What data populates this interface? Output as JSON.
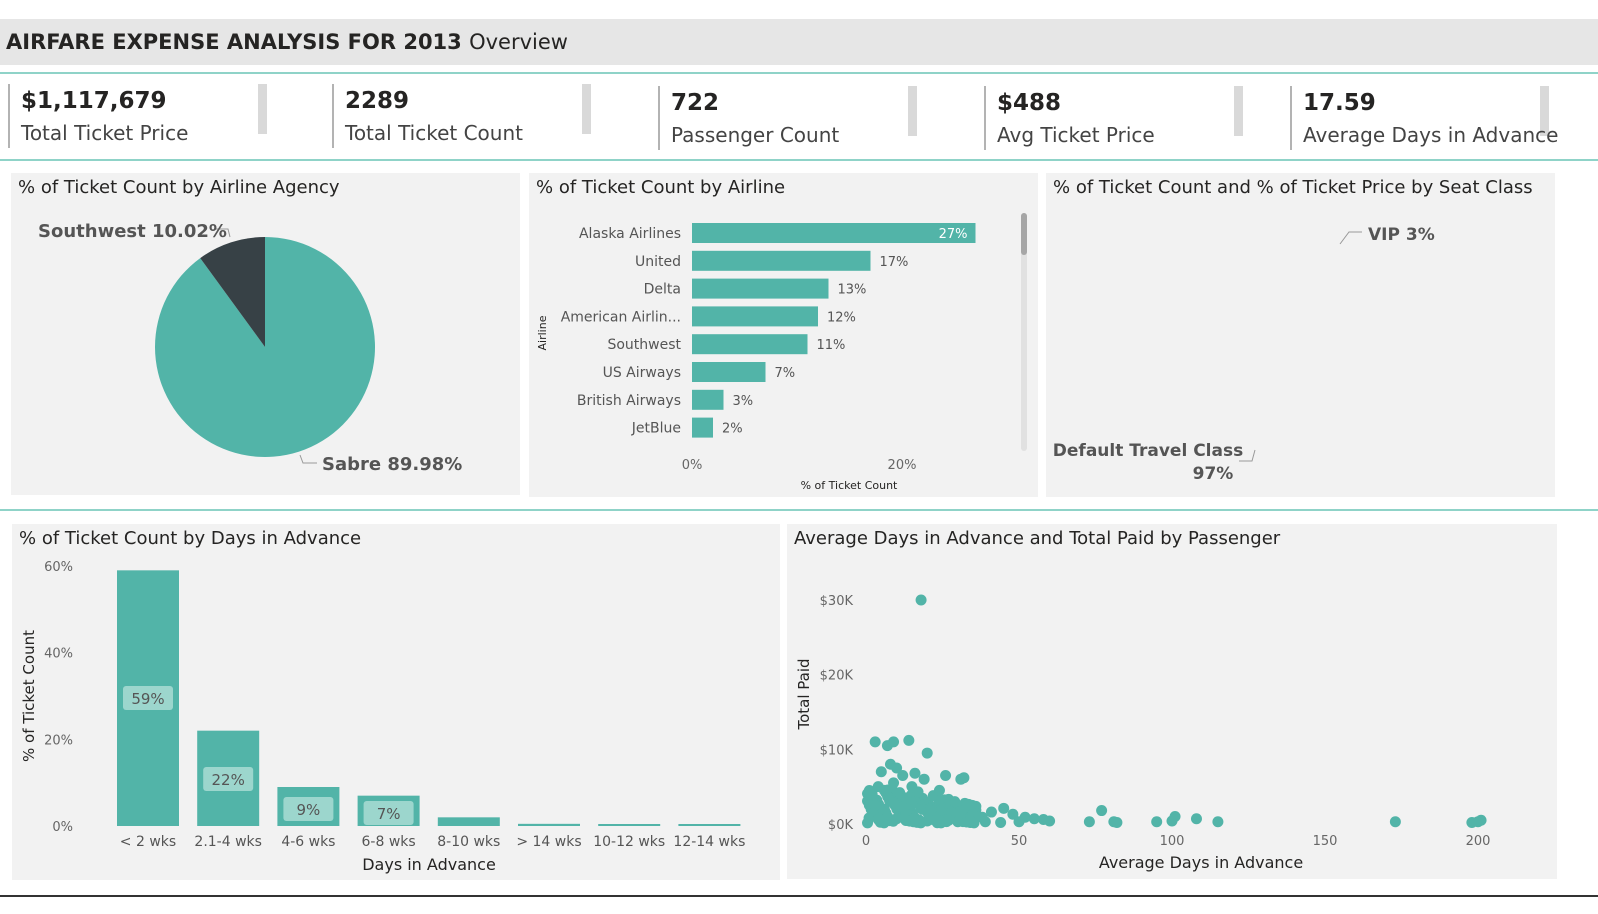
{
  "header": {
    "title": "AIRFARE EXPENSE ANALYSIS FOR 2013",
    "subtitle": "Overview"
  },
  "kpis": [
    {
      "value": "$1,117,679",
      "label": "Total Ticket Price"
    },
    {
      "value": "2289",
      "label": "Total Ticket Count"
    },
    {
      "value": "722",
      "label": "Passenger Count"
    },
    {
      "value": "$488",
      "label": "Avg Ticket Price"
    },
    {
      "value": "17.59",
      "label": "Average Days in Advance"
    }
  ],
  "colors": {
    "teal": "#52b4a8",
    "dark": "#374146",
    "panel": "#f2f2f2"
  },
  "chart_data": [
    {
      "type": "pie",
      "title": "% of Ticket Count by Airline Agency",
      "slices": [
        {
          "name": "Sabre",
          "value": 89.98,
          "label": "Sabre 89.98%",
          "color": "#52b4a8"
        },
        {
          "name": "Southwest",
          "value": 10.02,
          "label": "Southwest 10.02%",
          "color": "#374146"
        }
      ]
    },
    {
      "type": "bar",
      "orientation": "horizontal",
      "title": "% of Ticket Count by Airline",
      "xlabel": "% of Ticket Count",
      "ylabel": "Airline",
      "categories": [
        "Alaska Airlines",
        "United",
        "Delta",
        "American Airlin...",
        "Southwest",
        "US Airways",
        "British Airways",
        "JetBlue"
      ],
      "values": [
        27,
        17,
        13,
        12,
        11,
        7,
        3,
        2
      ],
      "data_labels": [
        "27%",
        "17%",
        "13%",
        "12%",
        "11%",
        "7%",
        "3%",
        "2%"
      ],
      "xticks": [
        "0%",
        "20%"
      ],
      "xlim": [
        0,
        30
      ]
    },
    {
      "type": "pie",
      "donut": true,
      "title": "% of Ticket Count and % of Ticket Price by Seat Class",
      "slices": [
        {
          "name": "Default Travel Class",
          "value": 97,
          "label_line1": "Default Travel Class",
          "label_line2": "97%",
          "color": "#52b4a8"
        },
        {
          "name": "VIP",
          "value": 3,
          "label": "VIP 3%",
          "color": "#374146"
        }
      ]
    },
    {
      "type": "bar",
      "title": "% of Ticket Count by Days in Advance",
      "xlabel": "Days in Advance",
      "ylabel": "% of Ticket Count",
      "categories": [
        "< 2 wks",
        "2.1-4 wks",
        "4-6 wks",
        "6-8 wks",
        "8-10 wks",
        "> 14 wks",
        "10-12 wks",
        "12-14 wks"
      ],
      "values": [
        59,
        22,
        9,
        7,
        2,
        0.5,
        0.3,
        0.3
      ],
      "data_labels": [
        "59%",
        "22%",
        "9%",
        "7%",
        "",
        "",
        "",
        ""
      ],
      "yticks": [
        "0%",
        "20%",
        "40%",
        "60%"
      ],
      "ylim": [
        0,
        60
      ]
    },
    {
      "type": "scatter",
      "title": "Average Days in Advance and Total Paid by Passenger",
      "xlabel": "Average Days in Advance",
      "ylabel": "Total Paid",
      "xticks": [
        "0",
        "50",
        "100",
        "150",
        "200"
      ],
      "yticks": [
        "$0K",
        "$10K",
        "$20K",
        "$30K"
      ],
      "xlim": [
        0,
        200
      ],
      "ylim": [
        0,
        30000
      ],
      "points": [
        [
          18,
          30000
        ],
        [
          3,
          11000
        ],
        [
          7,
          10500
        ],
        [
          9,
          11000
        ],
        [
          14,
          11200
        ],
        [
          20,
          9500
        ],
        [
          5,
          7000
        ],
        [
          8,
          8000
        ],
        [
          10,
          7500
        ],
        [
          12,
          6500
        ],
        [
          16,
          6800
        ],
        [
          19,
          6000
        ],
        [
          26,
          6500
        ],
        [
          32,
          6200
        ],
        [
          31,
          6000
        ],
        [
          2,
          4000
        ],
        [
          4,
          5000
        ],
        [
          6,
          4500
        ],
        [
          9,
          5500
        ],
        [
          11,
          4200
        ],
        [
          13,
          3500
        ],
        [
          15,
          5000
        ],
        [
          17,
          4300
        ],
        [
          22,
          3800
        ],
        [
          24,
          4500
        ],
        [
          27,
          3300
        ],
        [
          29,
          3000
        ],
        [
          33,
          2500
        ],
        [
          3,
          2500
        ],
        [
          6,
          2000
        ],
        [
          9,
          2800
        ],
        [
          12,
          2200
        ],
        [
          15,
          2600
        ],
        [
          18,
          2100
        ],
        [
          21,
          1800
        ],
        [
          25,
          2000
        ],
        [
          28,
          1500
        ],
        [
          31,
          1700
        ],
        [
          35,
          1200
        ],
        [
          38,
          900
        ],
        [
          41,
          1600
        ],
        [
          45,
          2100
        ],
        [
          48,
          1300
        ],
        [
          52,
          900
        ],
        [
          55,
          700
        ],
        [
          58,
          600
        ],
        [
          60,
          400
        ],
        [
          1,
          800
        ],
        [
          4,
          600
        ],
        [
          7,
          900
        ],
        [
          10,
          700
        ],
        [
          13,
          500
        ],
        [
          16,
          800
        ],
        [
          20,
          400
        ],
        [
          23,
          600
        ],
        [
          27,
          500
        ],
        [
          30,
          300
        ],
        [
          34,
          400
        ],
        [
          39,
          300
        ],
        [
          44,
          200
        ],
        [
          50,
          300
        ],
        [
          73,
          300
        ],
        [
          77,
          1800
        ],
        [
          81,
          300
        ],
        [
          82,
          200
        ],
        [
          95,
          300
        ],
        [
          100,
          400
        ],
        [
          101,
          1000
        ],
        [
          108,
          700
        ],
        [
          115,
          300
        ],
        [
          173,
          300
        ],
        [
          198,
          200
        ],
        [
          200,
          300
        ],
        [
          201,
          500
        ]
      ]
    }
  ]
}
